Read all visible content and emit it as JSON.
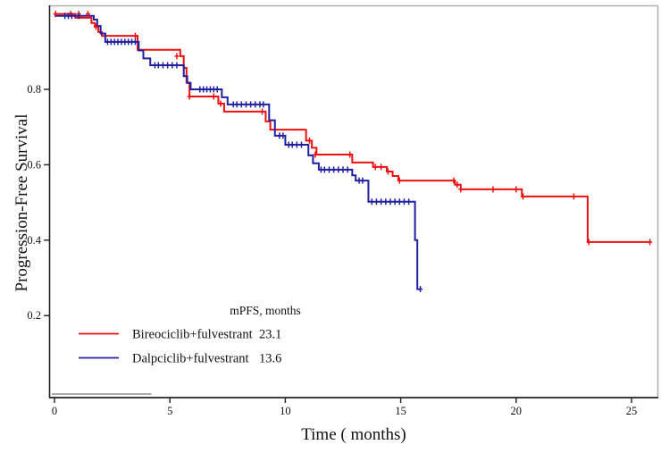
{
  "figure": {
    "kind": "kaplan-meier-survival-plot"
  },
  "legend": {
    "header": "mPFS, months",
    "items": [
      {
        "label": "Bireociclib+fulvestrant",
        "value": "23.1",
        "color": "#ee1010"
      },
      {
        "label": "Dalpciclib+fulvestrant",
        "value": "13.6",
        "color": "#2121a0"
      }
    ]
  },
  "chart_data": {
    "type": "line",
    "subtype": "kaplan-meier-step",
    "title": "",
    "xlabel": "Time ( months)",
    "ylabel": "Progression-Free Survival",
    "xlim": [
      0,
      26
    ],
    "ylim": [
      0,
      1.0
    ],
    "x_ticks": [
      0,
      5,
      10,
      15,
      20,
      25
    ],
    "y_ticks": [
      0.2,
      0.4,
      0.6,
      0.8
    ],
    "grid": false,
    "legend_position": "inside-bottom-left",
    "series": [
      {
        "name": "Bireociclib+fulvestrant",
        "median_pfs_months": 23.1,
        "color": "#ee1010",
        "steps": [
          [
            0,
            1.0
          ],
          [
            0.9,
            0.99
          ],
          [
            1.6,
            0.976
          ],
          [
            1.75,
            0.966
          ],
          [
            1.9,
            0.952
          ],
          [
            2.05,
            0.942
          ],
          [
            3.6,
            0.905
          ],
          [
            5.45,
            0.888
          ],
          [
            5.6,
            0.857
          ],
          [
            5.72,
            0.818
          ],
          [
            5.85,
            0.781
          ],
          [
            7.1,
            0.762
          ],
          [
            7.35,
            0.741
          ],
          [
            9.15,
            0.715
          ],
          [
            9.35,
            0.693
          ],
          [
            10.9,
            0.664
          ],
          [
            11.15,
            0.645
          ],
          [
            11.35,
            0.627
          ],
          [
            12.9,
            0.606
          ],
          [
            13.8,
            0.594
          ],
          [
            14.4,
            0.582
          ],
          [
            14.65,
            0.57
          ],
          [
            14.9,
            0.558
          ],
          [
            17.35,
            0.547
          ],
          [
            17.6,
            0.535
          ],
          [
            20.25,
            0.516
          ],
          [
            23.1,
            0.395
          ]
        ],
        "end_time": 25.8,
        "censor_marks": [
          [
            0.05,
            1.0
          ],
          [
            0.7,
            1.0
          ],
          [
            1.05,
            1.0
          ],
          [
            1.45,
            1.0
          ],
          [
            1.8,
            0.966
          ],
          [
            3.5,
            0.942
          ],
          [
            5.3,
            0.888
          ],
          [
            5.85,
            0.781
          ],
          [
            6.9,
            0.781
          ],
          [
            7.2,
            0.762
          ],
          [
            9.0,
            0.741
          ],
          [
            11.05,
            0.664
          ],
          [
            11.3,
            0.627
          ],
          [
            12.8,
            0.627
          ],
          [
            13.9,
            0.594
          ],
          [
            14.15,
            0.594
          ],
          [
            14.45,
            0.582
          ],
          [
            14.95,
            0.558
          ],
          [
            17.3,
            0.558
          ],
          [
            17.45,
            0.547
          ],
          [
            17.6,
            0.535
          ],
          [
            19.0,
            0.535
          ],
          [
            20.0,
            0.535
          ],
          [
            20.3,
            0.516
          ],
          [
            22.5,
            0.516
          ],
          [
            23.15,
            0.395
          ],
          [
            25.8,
            0.395
          ]
        ]
      },
      {
        "name": "Dalpciclib+fulvestrant",
        "median_pfs_months": 13.6,
        "color": "#2121a0",
        "steps": [
          [
            0,
            0.995
          ],
          [
            1.7,
            0.985
          ],
          [
            1.85,
            0.968
          ],
          [
            2.0,
            0.948
          ],
          [
            2.2,
            0.926
          ],
          [
            3.65,
            0.903
          ],
          [
            3.85,
            0.882
          ],
          [
            4.15,
            0.864
          ],
          [
            5.6,
            0.835
          ],
          [
            5.75,
            0.817
          ],
          [
            5.9,
            0.8
          ],
          [
            7.25,
            0.779
          ],
          [
            7.5,
            0.76
          ],
          [
            9.3,
            0.718
          ],
          [
            9.55,
            0.677
          ],
          [
            10.0,
            0.653
          ],
          [
            11.0,
            0.625
          ],
          [
            11.2,
            0.604
          ],
          [
            11.45,
            0.587
          ],
          [
            12.9,
            0.572
          ],
          [
            13.05,
            0.558
          ],
          [
            13.6,
            0.502
          ],
          [
            15.62,
            0.4
          ],
          [
            15.72,
            0.27
          ]
        ],
        "end_time": 15.88,
        "censor_marks": [
          [
            0.45,
            0.995
          ],
          [
            0.6,
            0.995
          ],
          [
            0.75,
            0.995
          ],
          [
            1.05,
            0.995
          ],
          [
            2.3,
            0.926
          ],
          [
            2.45,
            0.926
          ],
          [
            2.6,
            0.926
          ],
          [
            2.75,
            0.926
          ],
          [
            2.9,
            0.926
          ],
          [
            3.05,
            0.926
          ],
          [
            3.2,
            0.926
          ],
          [
            3.35,
            0.926
          ],
          [
            3.5,
            0.926
          ],
          [
            4.35,
            0.864
          ],
          [
            4.5,
            0.864
          ],
          [
            4.7,
            0.864
          ],
          [
            4.9,
            0.864
          ],
          [
            5.1,
            0.864
          ],
          [
            5.3,
            0.864
          ],
          [
            6.3,
            0.8
          ],
          [
            6.45,
            0.8
          ],
          [
            6.6,
            0.8
          ],
          [
            6.75,
            0.8
          ],
          [
            6.9,
            0.8
          ],
          [
            7.05,
            0.8
          ],
          [
            7.75,
            0.76
          ],
          [
            7.9,
            0.76
          ],
          [
            8.1,
            0.76
          ],
          [
            8.3,
            0.76
          ],
          [
            8.5,
            0.76
          ],
          [
            8.7,
            0.76
          ],
          [
            8.9,
            0.76
          ],
          [
            9.05,
            0.76
          ],
          [
            9.75,
            0.677
          ],
          [
            9.9,
            0.677
          ],
          [
            10.15,
            0.653
          ],
          [
            10.3,
            0.653
          ],
          [
            10.5,
            0.653
          ],
          [
            10.7,
            0.653
          ],
          [
            11.55,
            0.587
          ],
          [
            11.7,
            0.587
          ],
          [
            11.9,
            0.587
          ],
          [
            12.1,
            0.587
          ],
          [
            12.3,
            0.587
          ],
          [
            12.5,
            0.587
          ],
          [
            12.7,
            0.587
          ],
          [
            13.2,
            0.558
          ],
          [
            13.35,
            0.558
          ],
          [
            13.75,
            0.502
          ],
          [
            13.95,
            0.502
          ],
          [
            14.15,
            0.502
          ],
          [
            14.35,
            0.502
          ],
          [
            14.55,
            0.502
          ],
          [
            14.75,
            0.502
          ],
          [
            14.95,
            0.502
          ],
          [
            15.15,
            0.502
          ],
          [
            15.35,
            0.502
          ],
          [
            15.85,
            0.27
          ]
        ]
      }
    ],
    "annotations": {
      "baseline_segment": {
        "t0": 0,
        "t1": 4.2
      }
    }
  }
}
